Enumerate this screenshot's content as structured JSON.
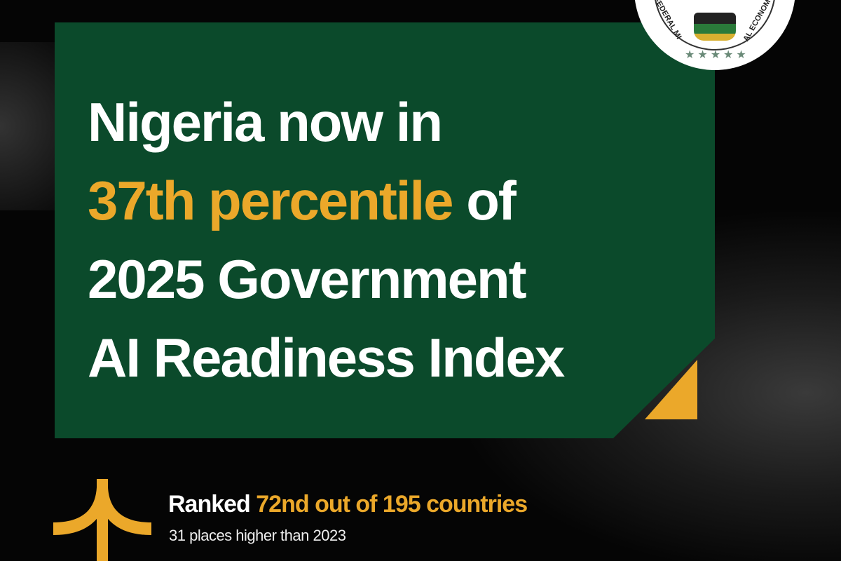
{
  "headline": {
    "line1": "Nigeria now in",
    "line2_highlight": "37th percentile",
    "line2_rest": " of",
    "line3": "2025 Government",
    "line4": "AI Readiness Index"
  },
  "seal": {
    "left_text": "FEDERAL MI",
    "right_text": "AL ECONOMY"
  },
  "stat": {
    "ranked_label": "Ranked",
    "ranked_value": " 72nd out of 195 countries",
    "subtext": "31 places higher than 2023"
  },
  "colors": {
    "green": "#0b4a2b",
    "accent": "#eba82a",
    "background": "#050505"
  },
  "icons": {
    "rank": "arrow-up-icon"
  }
}
